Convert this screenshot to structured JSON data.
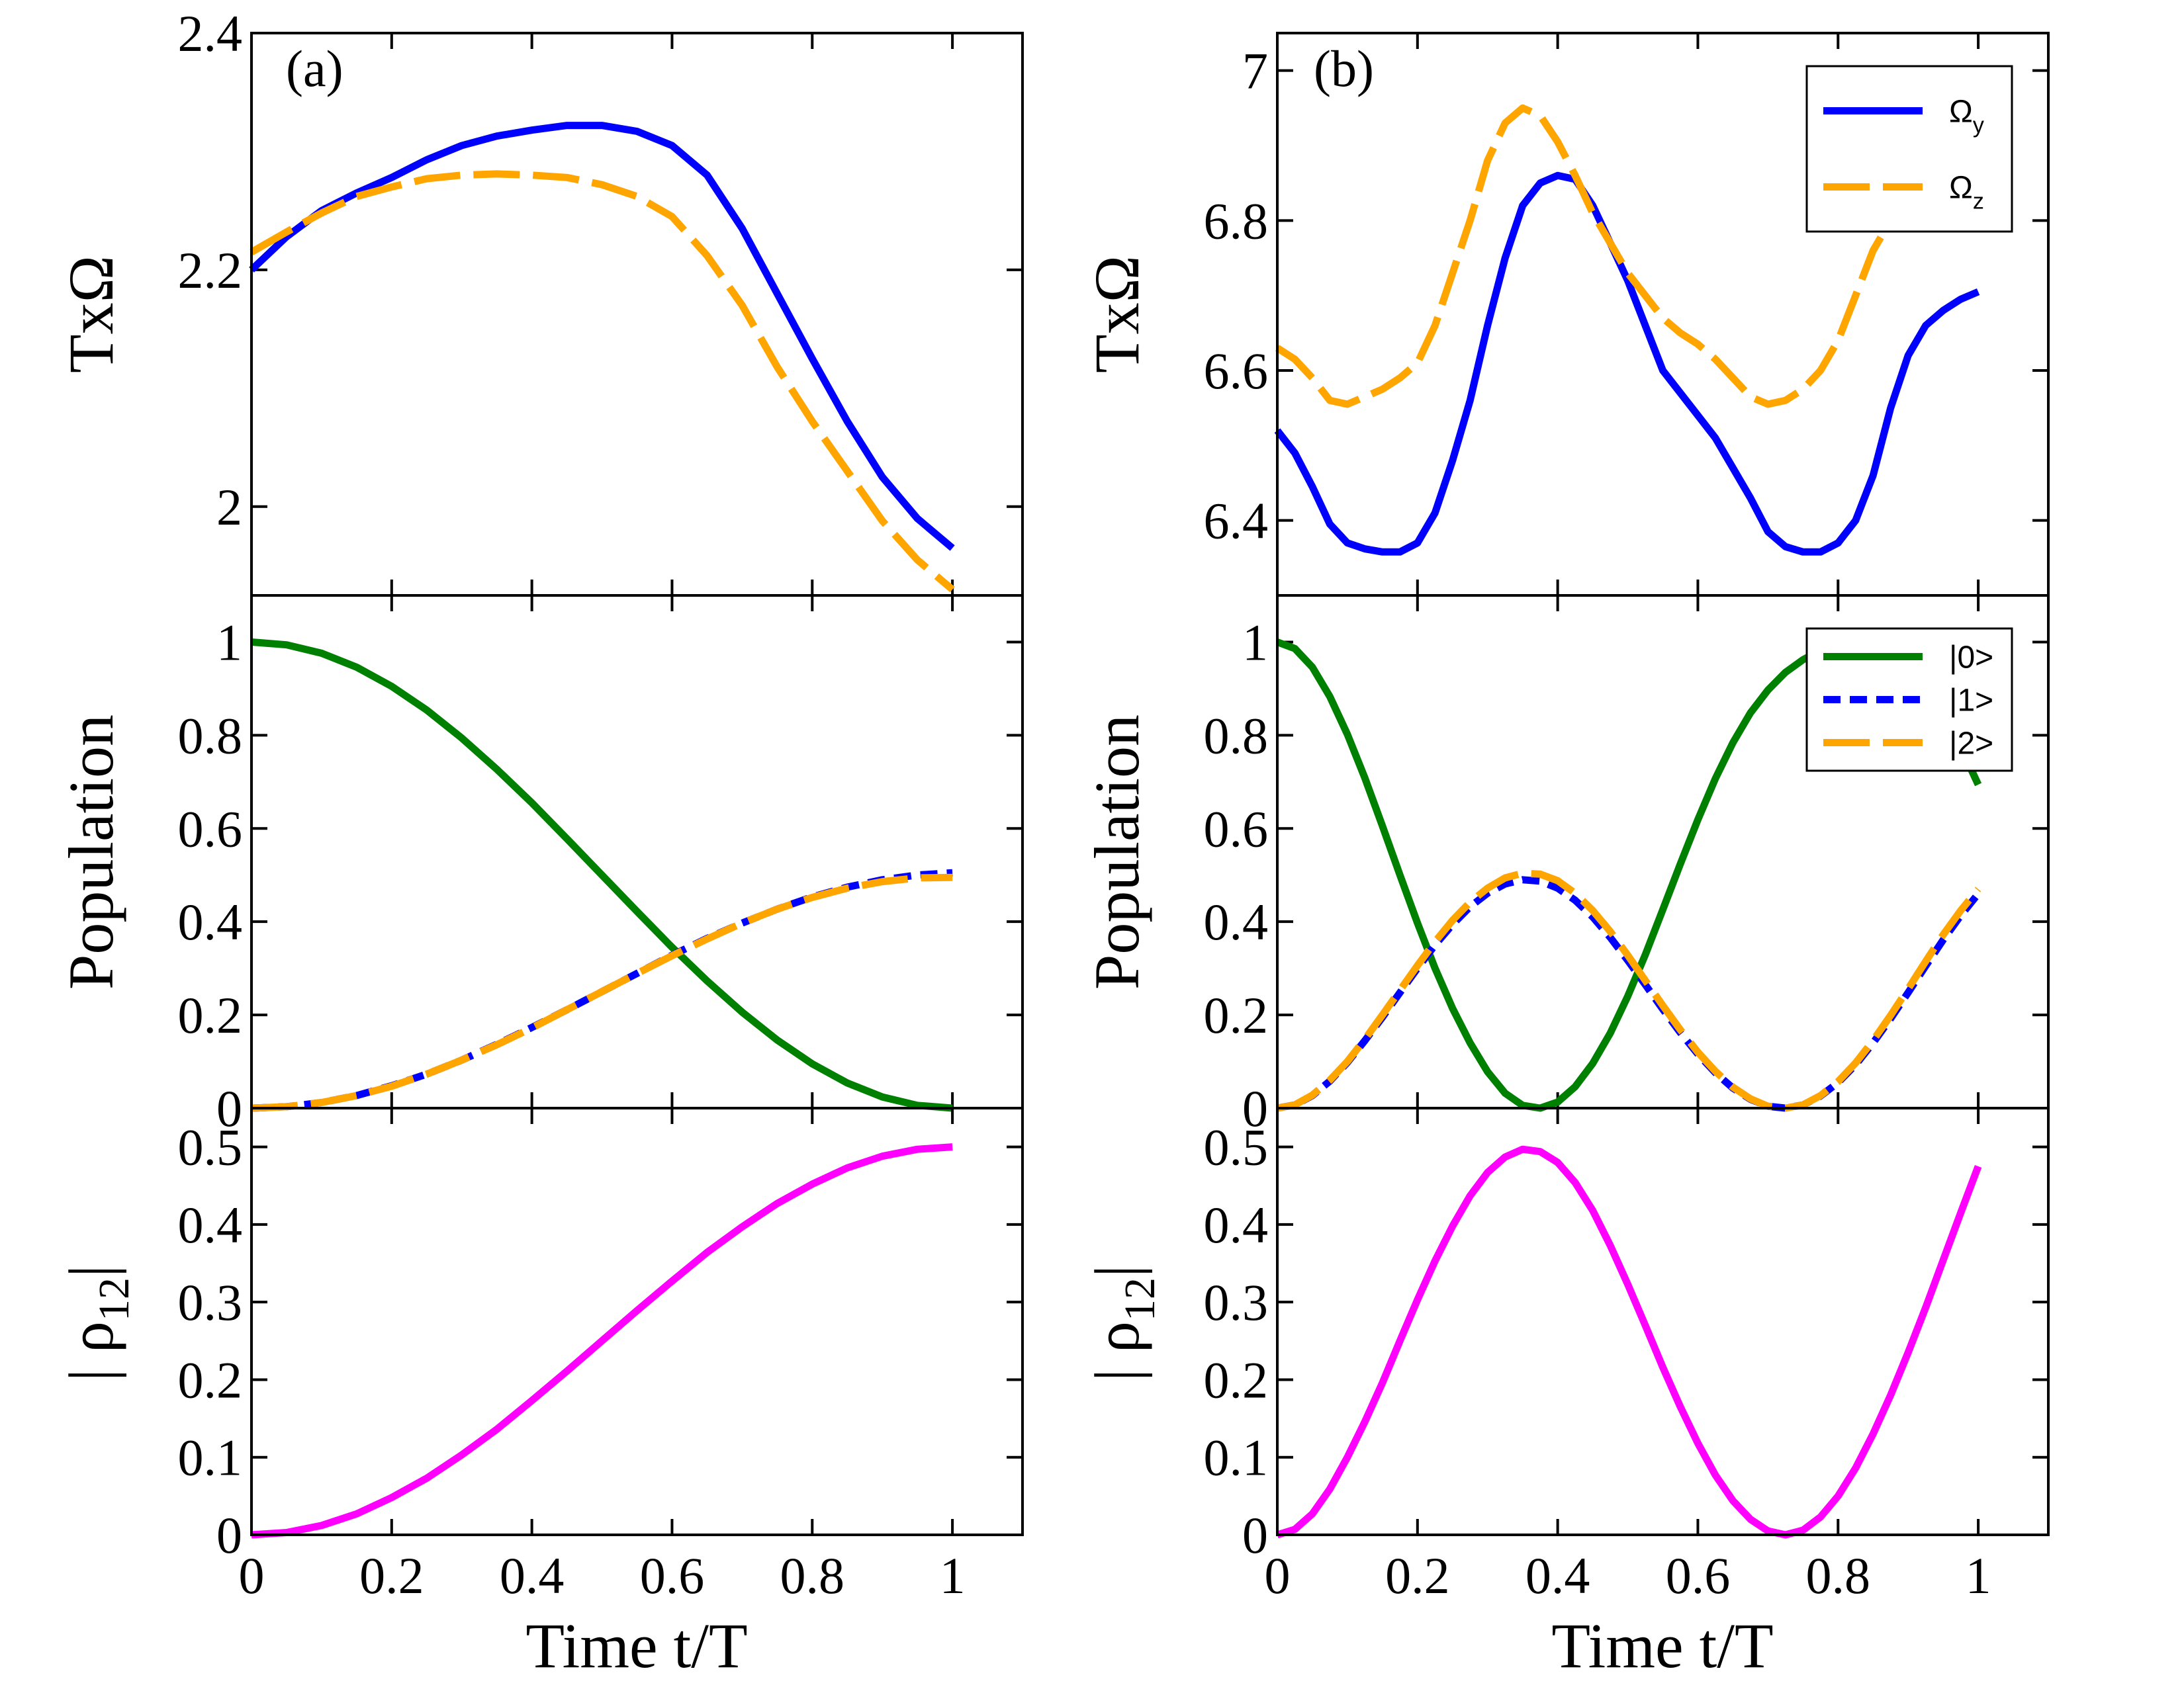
{
  "figure": {
    "x_title": "Time t/T",
    "y_titles": {
      "omega": "TxΩ",
      "population": "Population",
      "rho_main": "| ρ",
      "rho_sub": "12",
      "rho_end": "|"
    },
    "panel_labels": {
      "a": "(a)",
      "b": "(b)"
    }
  },
  "legends": {
    "omega": [
      {
        "key": "omega_y",
        "label": "Ω",
        "sub": "y",
        "color": "#0000ff",
        "dash": "solid"
      },
      {
        "key": "omega_z",
        "label": "Ω",
        "sub": "z",
        "color": "#ffa500",
        "dash": "dashdot"
      }
    ],
    "population": [
      {
        "key": "p0",
        "label": "|0>",
        "color": "#008000",
        "dash": "solid"
      },
      {
        "key": "p1",
        "label": "|1>",
        "color": "#0000ff",
        "dash": "dashed"
      },
      {
        "key": "p2",
        "label": "|2>",
        "color": "#ffa500",
        "dash": "dashdot"
      }
    ]
  },
  "chart_data": [
    {
      "type": "line",
      "panel": "a",
      "row": "omega",
      "title": "(a)",
      "xlabel": "",
      "ylabel": "TxΩ",
      "xlim": [
        0,
        1.1
      ],
      "ylim": [
        1.925,
        2.4
      ],
      "yticks": [
        2,
        2.2,
        2.4
      ],
      "ytick_labels": [
        "2",
        "2.2",
        "2.4"
      ],
      "show_xtick_labels": false,
      "series": [
        {
          "name": "Ω_y",
          "color": "#0000ff",
          "dash": "solid",
          "x": [
            0,
            0.05,
            0.1,
            0.15,
            0.2,
            0.25,
            0.3,
            0.35,
            0.4,
            0.45,
            0.5,
            0.55,
            0.6,
            0.65,
            0.7,
            0.75,
            0.8,
            0.85,
            0.9,
            0.95,
            1.0
          ],
          "y": [
            2.2,
            2.228,
            2.25,
            2.265,
            2.278,
            2.293,
            2.305,
            2.313,
            2.318,
            2.322,
            2.322,
            2.317,
            2.305,
            2.28,
            2.235,
            2.18,
            2.125,
            2.072,
            2.025,
            1.99,
            1.965
          ]
        },
        {
          "name": "Ω_z",
          "color": "#ffa500",
          "dash": "dashdot",
          "x": [
            0,
            0.05,
            0.1,
            0.15,
            0.2,
            0.25,
            0.3,
            0.35,
            0.4,
            0.45,
            0.5,
            0.55,
            0.6,
            0.65,
            0.7,
            0.75,
            0.8,
            0.85,
            0.9,
            0.95,
            1.0
          ],
          "y": [
            2.215,
            2.232,
            2.248,
            2.262,
            2.27,
            2.277,
            2.28,
            2.281,
            2.28,
            2.278,
            2.272,
            2.262,
            2.245,
            2.212,
            2.17,
            2.118,
            2.072,
            2.03,
            1.988,
            1.955,
            1.93
          ]
        }
      ]
    },
    {
      "type": "line",
      "panel": "b",
      "row": "omega",
      "title": "(b)",
      "xlabel": "",
      "ylabel": "TxΩ",
      "xlim": [
        0,
        1.1
      ],
      "ylim": [
        6.3,
        7.05
      ],
      "yticks": [
        6.4,
        6.6,
        6.8,
        7.0
      ],
      "ytick_labels": [
        "6.4",
        "6.6",
        "6.8",
        "7"
      ],
      "show_xtick_labels": false,
      "series": [
        {
          "name": "Ω_y",
          "color": "#0000ff",
          "dash": "solid",
          "x": [
            0,
            0.025,
            0.05,
            0.075,
            0.1,
            0.125,
            0.15,
            0.175,
            0.2,
            0.225,
            0.25,
            0.275,
            0.3,
            0.325,
            0.35,
            0.375,
            0.4,
            0.425,
            0.45,
            0.475,
            0.5,
            0.525,
            0.55,
            0.575,
            0.6,
            0.625,
            0.65,
            0.675,
            0.7,
            0.725,
            0.75,
            0.775,
            0.8,
            0.825,
            0.85,
            0.875,
            0.9,
            0.925,
            0.95,
            0.975,
            1.0
          ],
          "y": [
            6.52,
            6.49,
            6.445,
            6.395,
            6.37,
            6.362,
            6.358,
            6.358,
            6.37,
            6.41,
            6.48,
            6.56,
            6.66,
            6.75,
            6.82,
            6.85,
            6.86,
            6.855,
            6.82,
            6.77,
            6.72,
            6.66,
            6.6,
            6.57,
            6.54,
            6.51,
            6.47,
            6.43,
            6.385,
            6.365,
            6.358,
            6.358,
            6.37,
            6.4,
            6.46,
            6.55,
            6.62,
            6.66,
            6.68,
            6.695,
            6.705
          ]
        },
        {
          "name": "Ω_z",
          "color": "#ffa500",
          "dash": "dashdot",
          "x": [
            0,
            0.025,
            0.05,
            0.075,
            0.1,
            0.125,
            0.15,
            0.175,
            0.2,
            0.225,
            0.25,
            0.275,
            0.3,
            0.325,
            0.35,
            0.375,
            0.4,
            0.425,
            0.45,
            0.475,
            0.5,
            0.525,
            0.55,
            0.575,
            0.6,
            0.625,
            0.65,
            0.675,
            0.7,
            0.725,
            0.75,
            0.775,
            0.8,
            0.825,
            0.85,
            0.875,
            0.9,
            0.925,
            0.95
          ],
          "y": [
            6.63,
            6.615,
            6.59,
            6.56,
            6.555,
            6.565,
            6.575,
            6.59,
            6.61,
            6.66,
            6.73,
            6.8,
            6.88,
            6.93,
            6.95,
            6.94,
            6.905,
            6.86,
            6.81,
            6.77,
            6.73,
            6.7,
            6.67,
            6.65,
            6.635,
            6.615,
            6.59,
            6.565,
            6.555,
            6.56,
            6.575,
            6.6,
            6.64,
            6.7,
            6.76,
            6.8,
            6.83,
            6.85,
            6.86
          ]
        }
      ]
    },
    {
      "type": "line",
      "panel": "a",
      "row": "population",
      "xlabel": "",
      "ylabel": "Population",
      "xlim": [
        0,
        1.1
      ],
      "ylim": [
        0,
        1.1
      ],
      "yticks": [
        0,
        0.2,
        0.4,
        0.6,
        0.8,
        1.0
      ],
      "ytick_labels": [
        "0",
        "0.2",
        "0.4",
        "0.6",
        "0.8",
        "1"
      ],
      "show_xtick_labels": false,
      "series": [
        {
          "name": "|0>",
          "color": "#008000",
          "dash": "solid",
          "x": [
            0,
            0.05,
            0.1,
            0.15,
            0.2,
            0.25,
            0.3,
            0.35,
            0.4,
            0.45,
            0.5,
            0.55,
            0.6,
            0.65,
            0.7,
            0.75,
            0.8,
            0.85,
            0.9,
            0.95,
            1.0
          ],
          "y": [
            1.0,
            0.994,
            0.976,
            0.946,
            0.905,
            0.854,
            0.794,
            0.727,
            0.655,
            0.578,
            0.5,
            0.422,
            0.345,
            0.273,
            0.206,
            0.146,
            0.095,
            0.054,
            0.024,
            0.006,
            0.0
          ]
        },
        {
          "name": "|1>",
          "color": "#0000ff",
          "dash": "dashed",
          "x": [
            0,
            0.05,
            0.1,
            0.15,
            0.2,
            0.25,
            0.3,
            0.35,
            0.4,
            0.45,
            0.5,
            0.55,
            0.6,
            0.65,
            0.7,
            0.75,
            0.8,
            0.85,
            0.9,
            0.95,
            1.0
          ],
          "y": [
            0.0,
            0.003,
            0.012,
            0.027,
            0.048,
            0.073,
            0.103,
            0.137,
            0.173,
            0.211,
            0.25,
            0.289,
            0.328,
            0.364,
            0.397,
            0.427,
            0.453,
            0.474,
            0.49,
            0.5,
            0.505
          ]
        },
        {
          "name": "|2>",
          "color": "#ffa500",
          "dash": "dashdot",
          "x": [
            0,
            0.05,
            0.1,
            0.15,
            0.2,
            0.25,
            0.3,
            0.35,
            0.4,
            0.45,
            0.5,
            0.55,
            0.6,
            0.65,
            0.7,
            0.75,
            0.8,
            0.85,
            0.9,
            0.95,
            1.0
          ],
          "y": [
            0.0,
            0.003,
            0.012,
            0.027,
            0.047,
            0.073,
            0.103,
            0.136,
            0.172,
            0.211,
            0.25,
            0.289,
            0.327,
            0.363,
            0.397,
            0.427,
            0.452,
            0.472,
            0.486,
            0.494,
            0.495
          ]
        }
      ]
    },
    {
      "type": "line",
      "panel": "b",
      "row": "population",
      "xlabel": "",
      "ylabel": "Population",
      "xlim": [
        0,
        1.1
      ],
      "ylim": [
        0,
        1.1
      ],
      "yticks": [
        0,
        0.2,
        0.4,
        0.6,
        0.8,
        1.0
      ],
      "ytick_labels": [
        "0",
        "0.2",
        "0.4",
        "0.6",
        "0.8",
        "1"
      ],
      "show_xtick_labels": false,
      "series": [
        {
          "name": "|0>",
          "color": "#008000",
          "dash": "solid",
          "x": [
            0,
            0.025,
            0.05,
            0.075,
            0.1,
            0.125,
            0.15,
            0.175,
            0.2,
            0.225,
            0.25,
            0.275,
            0.3,
            0.325,
            0.35,
            0.375,
            0.4,
            0.425,
            0.45,
            0.475,
            0.5,
            0.525,
            0.55,
            0.575,
            0.6,
            0.625,
            0.65,
            0.675,
            0.7,
            0.725,
            0.75,
            0.775,
            0.8,
            0.825,
            0.85,
            0.875,
            0.9,
            0.925,
            0.95,
            0.975,
            1.0
          ],
          "y": [
            1.0,
            0.986,
            0.946,
            0.883,
            0.802,
            0.708,
            0.605,
            0.5,
            0.397,
            0.3,
            0.214,
            0.14,
            0.078,
            0.032,
            0.006,
            0.0,
            0.013,
            0.046,
            0.096,
            0.161,
            0.24,
            0.329,
            0.426,
            0.524,
            0.619,
            0.707,
            0.784,
            0.848,
            0.897,
            0.935,
            0.962,
            0.982,
            0.995,
            1.0,
            0.995,
            0.977,
            0.946,
            0.902,
            0.845,
            0.775,
            0.694
          ]
        },
        {
          "name": "|1>",
          "color": "#0000ff",
          "dash": "dashed",
          "x": [
            0,
            0.025,
            0.05,
            0.075,
            0.1,
            0.125,
            0.15,
            0.175,
            0.2,
            0.225,
            0.25,
            0.275,
            0.3,
            0.325,
            0.35,
            0.375,
            0.4,
            0.425,
            0.45,
            0.475,
            0.5,
            0.525,
            0.55,
            0.575,
            0.6,
            0.625,
            0.65,
            0.675,
            0.7,
            0.725,
            0.75,
            0.775,
            0.8,
            0.825,
            0.85,
            0.875,
            0.9,
            0.925,
            0.95,
            0.975,
            1.0
          ],
          "y": [
            0.0,
            0.007,
            0.027,
            0.058,
            0.098,
            0.145,
            0.195,
            0.248,
            0.3,
            0.35,
            0.394,
            0.432,
            0.461,
            0.481,
            0.49,
            0.487,
            0.472,
            0.446,
            0.41,
            0.366,
            0.317,
            0.265,
            0.212,
            0.162,
            0.116,
            0.076,
            0.043,
            0.019,
            0.004,
            0.0,
            0.007,
            0.026,
            0.055,
            0.093,
            0.14,
            0.192,
            0.248,
            0.305,
            0.361,
            0.413,
            0.46
          ]
        },
        {
          "name": "|2>",
          "color": "#ffa500",
          "dash": "dashdot",
          "x": [
            0,
            0.025,
            0.05,
            0.075,
            0.1,
            0.125,
            0.15,
            0.175,
            0.2,
            0.225,
            0.25,
            0.275,
            0.3,
            0.325,
            0.35,
            0.375,
            0.4,
            0.425,
            0.45,
            0.475,
            0.5,
            0.525,
            0.55,
            0.575,
            0.6,
            0.625,
            0.65,
            0.675,
            0.7,
            0.725,
            0.75,
            0.775,
            0.8,
            0.825,
            0.85,
            0.875,
            0.9,
            0.925,
            0.95,
            0.975,
            1.0
          ],
          "y": [
            0.0,
            0.007,
            0.028,
            0.06,
            0.1,
            0.148,
            0.2,
            0.253,
            0.306,
            0.357,
            0.403,
            0.442,
            0.472,
            0.494,
            0.504,
            0.502,
            0.488,
            0.461,
            0.424,
            0.379,
            0.328,
            0.274,
            0.22,
            0.168,
            0.12,
            0.079,
            0.045,
            0.02,
            0.004,
            0.0,
            0.007,
            0.027,
            0.057,
            0.097,
            0.145,
            0.199,
            0.256,
            0.315,
            0.372,
            0.424,
            0.47
          ]
        }
      ]
    },
    {
      "type": "line",
      "panel": "a",
      "row": "rho",
      "xlabel": "Time t/T",
      "ylabel": "|ρ12|",
      "xlim": [
        0,
        1.1
      ],
      "ylim": [
        0,
        0.55
      ],
      "yticks": [
        0,
        0.1,
        0.2,
        0.3,
        0.4,
        0.5
      ],
      "ytick_labels": [
        "0",
        "0.1",
        "0.2",
        "0.3",
        "0.4",
        "0.5"
      ],
      "xticks": [
        0,
        0.2,
        0.4,
        0.6,
        0.8,
        1.0
      ],
      "xtick_labels": [
        "0",
        "0.2",
        "0.4",
        "0.6",
        "0.8",
        "1"
      ],
      "show_xtick_labels": true,
      "series": [
        {
          "name": "|ρ12|",
          "color": "#ff00ff",
          "dash": "solid",
          "x": [
            0,
            0.05,
            0.1,
            0.15,
            0.2,
            0.25,
            0.3,
            0.35,
            0.4,
            0.45,
            0.5,
            0.55,
            0.6,
            0.65,
            0.7,
            0.75,
            0.8,
            0.85,
            0.9,
            0.95,
            1.0
          ],
          "y": [
            0.0,
            0.003,
            0.012,
            0.027,
            0.048,
            0.073,
            0.103,
            0.136,
            0.173,
            0.211,
            0.25,
            0.289,
            0.327,
            0.364,
            0.397,
            0.427,
            0.452,
            0.473,
            0.488,
            0.497,
            0.5
          ]
        }
      ]
    },
    {
      "type": "line",
      "panel": "b",
      "row": "rho",
      "xlabel": "Time t/T",
      "ylabel": "|ρ12|",
      "xlim": [
        0,
        1.1
      ],
      "ylim": [
        0,
        0.55
      ],
      "yticks": [
        0,
        0.1,
        0.2,
        0.3,
        0.4,
        0.5
      ],
      "ytick_labels": [
        "0",
        "0.1",
        "0.2",
        "0.3",
        "0.4",
        "0.5"
      ],
      "xticks": [
        0,
        0.2,
        0.4,
        0.6,
        0.8,
        1.0
      ],
      "xtick_labels": [
        "0",
        "0.2",
        "0.4",
        "0.6",
        "0.8",
        "1"
      ],
      "show_xtick_labels": true,
      "series": [
        {
          "name": "|ρ12|",
          "color": "#ff00ff",
          "dash": "solid",
          "x": [
            0,
            0.025,
            0.05,
            0.075,
            0.1,
            0.125,
            0.15,
            0.175,
            0.2,
            0.225,
            0.25,
            0.275,
            0.3,
            0.325,
            0.35,
            0.375,
            0.4,
            0.425,
            0.45,
            0.475,
            0.5,
            0.525,
            0.55,
            0.575,
            0.6,
            0.625,
            0.65,
            0.675,
            0.7,
            0.725,
            0.75,
            0.775,
            0.8,
            0.825,
            0.85,
            0.875,
            0.9,
            0.925,
            0.95,
            0.975,
            1.0
          ],
          "y": [
            0.0,
            0.007,
            0.027,
            0.059,
            0.1,
            0.146,
            0.196,
            0.25,
            0.303,
            0.353,
            0.398,
            0.437,
            0.467,
            0.487,
            0.497,
            0.494,
            0.48,
            0.454,
            0.418,
            0.373,
            0.323,
            0.27,
            0.216,
            0.165,
            0.118,
            0.077,
            0.044,
            0.02,
            0.005,
            0.0,
            0.006,
            0.023,
            0.05,
            0.086,
            0.13,
            0.18,
            0.235,
            0.293,
            0.354,
            0.415,
            0.475
          ]
        }
      ]
    }
  ]
}
